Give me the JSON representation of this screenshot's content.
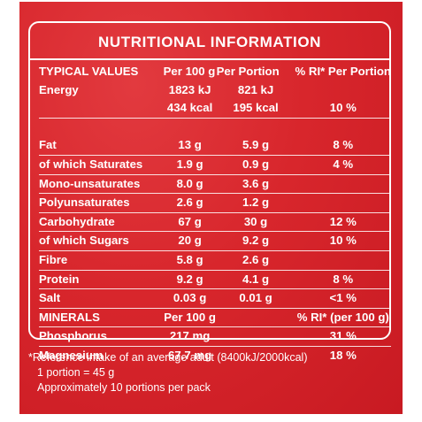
{
  "title": "NUTRITIONAL INFORMATION",
  "headers": [
    "TYPICAL VALUES",
    "Per 100 g",
    "Per Portion",
    "% RI* Per Portion"
  ],
  "energy": {
    "label": "Energy",
    "kj_100": "1823 kJ",
    "kj_portion": "821 kJ",
    "kcal_100": "434 kcal",
    "kcal_portion": "195 kcal",
    "ri": "10 %"
  },
  "rows": [
    {
      "label": "Fat",
      "per100": "13 g",
      "portion": "5.9 g",
      "ri": "8 %"
    },
    {
      "label": "of which Saturates",
      "per100": "1.9 g",
      "portion": "0.9 g",
      "ri": "4 %"
    },
    {
      "label": "Mono-unsaturates",
      "per100": "8.0 g",
      "portion": "3.6 g",
      "ri": ""
    },
    {
      "label": "Polyunsaturates",
      "per100": "2.6 g",
      "portion": "1.2 g",
      "ri": ""
    },
    {
      "label": "Carbohydrate",
      "per100": "67 g",
      "portion": "30 g",
      "ri": "12 %"
    },
    {
      "label": "of which Sugars",
      "per100": "20 g",
      "portion": "9.2 g",
      "ri": "10 %"
    },
    {
      "label": "Fibre",
      "per100": "5.8 g",
      "portion": "2.6 g",
      "ri": ""
    },
    {
      "label": "Protein",
      "per100": "9.2 g",
      "portion": "4.1 g",
      "ri": "8 %"
    },
    {
      "label": "Salt",
      "per100": "0.03 g",
      "portion": "0.01 g",
      "ri": "<1 %"
    }
  ],
  "minerals": {
    "header": [
      "MINERALS",
      "Per 100 g",
      "% RI* (per 100 g)"
    ],
    "rows": [
      {
        "label": "Phosphorus",
        "per100": "217 mg",
        "ri": "31 %"
      },
      {
        "label": "Magnesium",
        "per100": "67.7 mg",
        "ri": "18 %"
      }
    ]
  },
  "footnotes": [
    "*Reference intake of an average adult (8400kJ/2000kcal)",
    "1 portion = 45 g",
    "Approximately 10 portions per pack"
  ],
  "colors": {
    "panel": "#d8262c",
    "text": "#ffffff"
  }
}
